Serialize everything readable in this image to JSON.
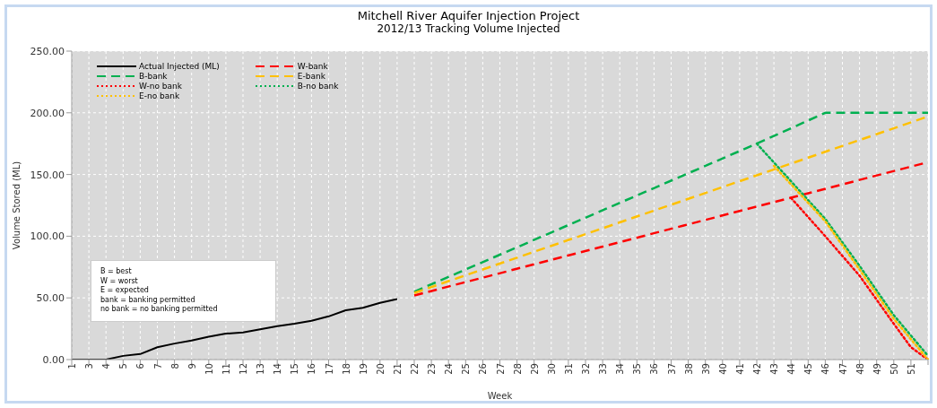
{
  "chart_data": {
    "type": "line",
    "title": "Mitchell River Aquifer Injection Project",
    "subtitle": "2012/13 Tracking Volume Injected",
    "xlabel": "Week",
    "ylabel": "Volume Stored (ML)",
    "categories": [
      "1",
      "3",
      "4",
      "5",
      "6",
      "7",
      "8",
      "9",
      "10",
      "11",
      "12",
      "13",
      "14",
      "15",
      "16",
      "17",
      "18",
      "19",
      "20",
      "21",
      "22",
      "23",
      "24",
      "25",
      "26",
      "27",
      "28",
      "29",
      "30",
      "31",
      "32",
      "33",
      "34",
      "35",
      "36",
      "37",
      "38",
      "39",
      "40",
      "41",
      "42",
      "43",
      "44",
      "45",
      "46",
      "47",
      "48",
      "49",
      "50",
      "51",
      null
    ],
    "ylim": [
      0,
      250
    ],
    "yticks": [
      {
        "value": 0,
        "label": "0.00"
      },
      {
        "value": 50,
        "label": "50.00"
      },
      {
        "value": 100,
        "label": "100.00"
      },
      {
        "value": 150,
        "label": "150.00"
      },
      {
        "value": 200,
        "label": "200.00"
      },
      {
        "value": 250,
        "label": "250.00"
      }
    ],
    "grid": true,
    "legend": "top left",
    "marker": "none",
    "annotations": [
      "B = best",
      "W = worst",
      "E = expected",
      "bank = banking permitted",
      "no bank = no banking permitted"
    ],
    "series": [
      {
        "name": "Actual Injected (ML)",
        "color": "#000000",
        "line_style": "solid",
        "values": [
          0,
          0,
          0,
          3,
          4.5,
          10,
          13,
          15.5,
          18.5,
          21,
          22,
          24.5,
          27,
          29,
          31.5,
          35,
          40,
          42,
          46,
          49,
          null,
          null,
          null,
          null,
          null,
          null,
          null,
          null,
          null,
          null,
          null,
          null,
          null,
          null,
          null,
          null,
          null,
          null,
          null,
          null,
          null,
          null,
          null,
          null,
          null,
          null,
          null,
          null,
          null,
          null,
          null
        ]
      },
      {
        "name": "W-bank",
        "color": "#ff0000",
        "line_style": "dashed",
        "values": [
          null,
          null,
          null,
          null,
          null,
          null,
          null,
          null,
          null,
          null,
          null,
          null,
          null,
          null,
          null,
          null,
          null,
          null,
          null,
          null,
          52,
          null,
          null,
          null,
          null,
          null,
          null,
          null,
          null,
          null,
          null,
          null,
          null,
          null,
          null,
          null,
          null,
          null,
          null,
          null,
          null,
          null,
          null,
          null,
          null,
          null,
          null,
          null,
          null,
          null,
          160
        ]
      },
      {
        "name": "B-bank",
        "color": "#00b050",
        "line_style": "dashed",
        "values": [
          null,
          null,
          null,
          null,
          null,
          null,
          null,
          null,
          null,
          null,
          null,
          null,
          null,
          null,
          null,
          null,
          null,
          null,
          null,
          null,
          55,
          null,
          null,
          null,
          null,
          null,
          null,
          null,
          null,
          null,
          null,
          null,
          null,
          null,
          null,
          null,
          null,
          null,
          null,
          null,
          175,
          null,
          null,
          null,
          200,
          null,
          null,
          null,
          null,
          null,
          200
        ]
      },
      {
        "name": "E-bank",
        "color": "#ffc000",
        "line_style": "dashed",
        "values": [
          null,
          null,
          null,
          null,
          null,
          null,
          null,
          null,
          null,
          null,
          null,
          null,
          null,
          null,
          null,
          null,
          null,
          null,
          null,
          null,
          54,
          null,
          null,
          null,
          null,
          null,
          null,
          null,
          null,
          null,
          null,
          null,
          null,
          null,
          null,
          null,
          null,
          null,
          null,
          null,
          null,
          null,
          null,
          null,
          null,
          null,
          null,
          null,
          null,
          null,
          197
        ]
      },
      {
        "name": "W-no bank",
        "color": "#ff0000",
        "line_style": "dotted",
        "values": [
          null,
          null,
          null,
          null,
          null,
          null,
          null,
          null,
          null,
          null,
          null,
          null,
          null,
          null,
          null,
          null,
          null,
          null,
          null,
          null,
          null,
          null,
          null,
          null,
          null,
          null,
          null,
          null,
          null,
          null,
          null,
          null,
          null,
          null,
          null,
          null,
          null,
          null,
          null,
          null,
          null,
          null,
          131,
          null,
          100,
          null,
          68,
          null,
          29,
          10,
          0
        ]
      },
      {
        "name": "B-no bank",
        "color": "#00b050",
        "line_style": "dotted",
        "values": [
          null,
          null,
          null,
          null,
          null,
          null,
          null,
          null,
          null,
          null,
          null,
          null,
          null,
          null,
          null,
          null,
          null,
          null,
          null,
          null,
          null,
          null,
          null,
          null,
          null,
          null,
          null,
          null,
          null,
          null,
          null,
          null,
          null,
          null,
          null,
          null,
          null,
          null,
          null,
          null,
          175,
          null,
          null,
          null,
          114,
          null,
          76,
          null,
          36,
          null,
          3
        ]
      },
      {
        "name": "E-no bank",
        "color": "#ffc000",
        "line_style": "dotted",
        "values": [
          null,
          null,
          null,
          null,
          null,
          null,
          null,
          null,
          null,
          null,
          null,
          null,
          null,
          null,
          null,
          null,
          null,
          null,
          null,
          null,
          null,
          null,
          null,
          null,
          null,
          null,
          null,
          null,
          null,
          null,
          null,
          null,
          null,
          null,
          null,
          null,
          null,
          null,
          null,
          null,
          null,
          157,
          null,
          null,
          112,
          null,
          73,
          null,
          33,
          null,
          0
        ]
      }
    ]
  }
}
